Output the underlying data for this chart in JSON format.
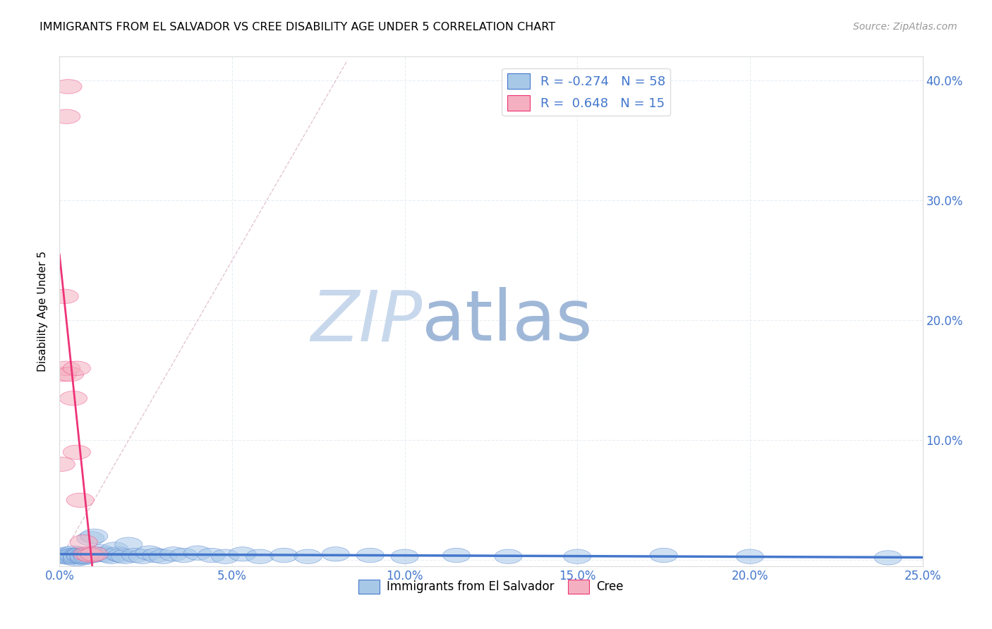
{
  "title": "IMMIGRANTS FROM EL SALVADOR VS CREE DISABILITY AGE UNDER 5 CORRELATION CHART",
  "source": "Source: ZipAtlas.com",
  "ylabel": "Disability Age Under 5",
  "xmin": 0.0,
  "xmax": 0.25,
  "ymin": -0.005,
  "ymax": 0.42,
  "legend_blue_label": "R = -0.274   N = 58",
  "legend_pink_label": "R =  0.648   N = 15",
  "blue_color": "#A8C8E8",
  "pink_color": "#F4B0C0",
  "trend_blue_color": "#4477CC",
  "trend_pink_color": "#EE3377",
  "diag_color": "#CCBBCC",
  "grid_color": "#E8EEF4",
  "background_color": "#FFFFFF",
  "watermark_zip_color": "#C8D8EC",
  "watermark_atlas_color": "#A0B8D8",
  "blue_scatter_x": [
    0.001,
    0.001,
    0.002,
    0.002,
    0.003,
    0.003,
    0.003,
    0.004,
    0.004,
    0.004,
    0.005,
    0.005,
    0.005,
    0.006,
    0.006,
    0.006,
    0.007,
    0.007,
    0.007,
    0.008,
    0.008,
    0.009,
    0.009,
    0.01,
    0.01,
    0.011,
    0.012,
    0.013,
    0.014,
    0.015,
    0.016,
    0.017,
    0.018,
    0.019,
    0.02,
    0.022,
    0.024,
    0.026,
    0.028,
    0.03,
    0.033,
    0.036,
    0.04,
    0.044,
    0.048,
    0.053,
    0.058,
    0.065,
    0.072,
    0.08,
    0.09,
    0.1,
    0.115,
    0.13,
    0.15,
    0.175,
    0.2,
    0.24
  ],
  "blue_scatter_y": [
    0.004,
    0.003,
    0.003,
    0.005,
    0.002,
    0.004,
    0.003,
    0.006,
    0.003,
    0.004,
    0.001,
    0.004,
    0.003,
    0.005,
    0.003,
    0.004,
    0.002,
    0.004,
    0.003,
    0.004,
    0.003,
    0.018,
    0.005,
    0.004,
    0.02,
    0.005,
    0.007,
    0.005,
    0.004,
    0.003,
    0.009,
    0.005,
    0.004,
    0.003,
    0.013,
    0.004,
    0.003,
    0.006,
    0.004,
    0.003,
    0.005,
    0.004,
    0.006,
    0.004,
    0.003,
    0.005,
    0.003,
    0.004,
    0.003,
    0.005,
    0.004,
    0.003,
    0.004,
    0.003,
    0.003,
    0.004,
    0.003,
    0.002
  ],
  "pink_scatter_x": [
    0.0005,
    0.001,
    0.0015,
    0.002,
    0.002,
    0.0025,
    0.003,
    0.004,
    0.005,
    0.005,
    0.006,
    0.007,
    0.008,
    0.009,
    0.01
  ],
  "pink_scatter_y": [
    0.08,
    0.155,
    0.22,
    0.16,
    0.37,
    0.395,
    0.155,
    0.135,
    0.09,
    0.16,
    0.05,
    0.015,
    0.005,
    0.004,
    0.005
  ],
  "xtick_positions": [
    0.0,
    0.05,
    0.1,
    0.15,
    0.2,
    0.25
  ],
  "xtick_labels": [
    "0.0%",
    "5.0%",
    "10.0%",
    "15.0%",
    "20.0%",
    "25.0%"
  ],
  "ytick_positions": [
    0.0,
    0.1,
    0.2,
    0.3,
    0.4
  ],
  "ytick_labels_right": [
    "",
    "10.0%",
    "20.0%",
    "30.0%",
    "40.0%"
  ]
}
